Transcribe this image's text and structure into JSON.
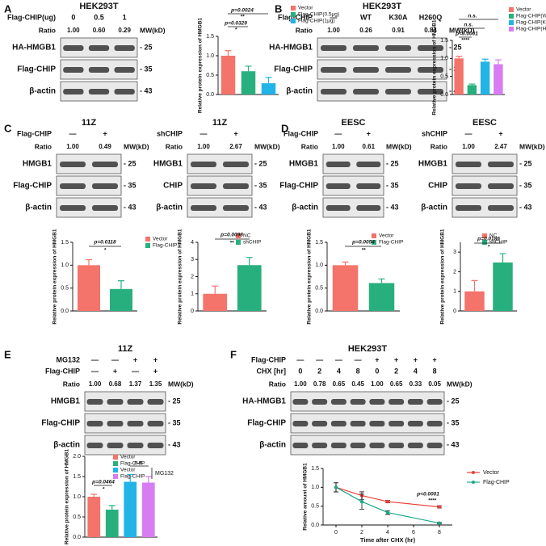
{
  "panel_labels": [
    "A",
    "B",
    "C",
    "D",
    "E",
    "F"
  ],
  "blots": [
    {
      "title": "HEK293T",
      "conditions": [
        {
          "name": "Flag-CHIP(ug)",
          "lanes": [
            "0",
            "0.5",
            "1"
          ]
        }
      ],
      "ratio_label": "Ratio",
      "ratios": [
        "1.00",
        "0.60",
        "0.29"
      ],
      "mw_label": "MW(kD)",
      "bands": [
        {
          "name": "HA-HMGB1",
          "mw": "- 25"
        },
        {
          "name": "Flag-CHIP",
          "mw": "- 35"
        },
        {
          "name": "β-actin",
          "mw": "- 43"
        }
      ]
    },
    {
      "title": "HEK293T",
      "conditions": [
        {
          "name": "Flag-CHIP",
          "lanes": [
            "—",
            "WT",
            "K30A",
            "H260Q"
          ]
        }
      ],
      "ratio_label": "Ratio",
      "ratios": [
        "1.00",
        "0.26",
        "0.91",
        "0.84"
      ],
      "mw_label": "MW(kD)",
      "bands": [
        {
          "name": "HA-HMGB1",
          "mw": "- 25"
        },
        {
          "name": "Flag-CHIP",
          "mw": "- 35"
        },
        {
          "name": "β-actin",
          "mw": "- 43"
        }
      ]
    },
    {
      "title": "11Z",
      "conditions": [
        {
          "name": "Flag-CHIP",
          "lanes": [
            "—",
            "+"
          ]
        }
      ],
      "ratio_label": "Ratio",
      "ratios": [
        "1.00",
        "0.49"
      ],
      "mw_label": "MW(kD)",
      "bands": [
        {
          "name": "HMGB1",
          "mw": "- 25"
        },
        {
          "name": "Flag-CHIP",
          "mw": "- 35"
        },
        {
          "name": "β-actin",
          "mw": "- 43"
        }
      ]
    },
    {
      "title": "11Z",
      "conditions": [
        {
          "name": "shCHIP",
          "lanes": [
            "—",
            "+"
          ]
        }
      ],
      "ratio_label": "Ratio",
      "ratios": [
        "1.00",
        "2.67"
      ],
      "mw_label": "MW(kD)",
      "bands": [
        {
          "name": "HMGB1",
          "mw": "- 25"
        },
        {
          "name": "CHIP",
          "mw": "- 35"
        },
        {
          "name": "β-actin",
          "mw": "- 43"
        }
      ]
    },
    {
      "title": "EESC",
      "conditions": [
        {
          "name": "Flag-CHIP",
          "lanes": [
            "—",
            "+"
          ]
        }
      ],
      "ratio_label": "Ratio",
      "ratios": [
        "1.00",
        "0.61"
      ],
      "mw_label": "MW(kD)",
      "bands": [
        {
          "name": "HMGB1",
          "mw": "- 25"
        },
        {
          "name": "Flag-CHIP",
          "mw": "- 35"
        },
        {
          "name": "β-actin",
          "mw": "- 43"
        }
      ]
    },
    {
      "title": "EESC",
      "conditions": [
        {
          "name": "shCHIP",
          "lanes": [
            "—",
            "+"
          ]
        }
      ],
      "ratio_label": "Ratio",
      "ratios": [
        "1.00",
        "2.47"
      ],
      "mw_label": "MW(kD)",
      "bands": [
        {
          "name": "HMGB1",
          "mw": "- 25"
        },
        {
          "name": "CHIP",
          "mw": "- 35"
        },
        {
          "name": "β-actin",
          "mw": "- 43"
        }
      ]
    },
    {
      "title": "11Z",
      "conditions": [
        {
          "name": "MG132",
          "lanes": [
            "—",
            "—",
            "+",
            "+"
          ]
        },
        {
          "name": "Flag-CHIP",
          "lanes": [
            "—",
            "+",
            "—",
            "+"
          ]
        }
      ],
      "ratio_label": "Ratio",
      "ratios": [
        "1.00",
        "0.68",
        "1.37",
        "1.35"
      ],
      "mw_label": "MW(kD)",
      "bands": [
        {
          "name": "HMGB1",
          "mw": "- 25"
        },
        {
          "name": "Flag-CHIP",
          "mw": "- 35"
        },
        {
          "name": "β-actin",
          "mw": "- 43"
        }
      ]
    },
    {
      "title": "HEK293T",
      "conditions": [
        {
          "name": "Flag-CHIP",
          "lanes": [
            "—",
            "—",
            "—",
            "—",
            "+",
            "+",
            "+",
            "+"
          ]
        },
        {
          "name": "CHX [hr]",
          "lanes": [
            "0",
            "2",
            "4",
            "8",
            "0",
            "2",
            "4",
            "8"
          ]
        }
      ],
      "ratio_label": "Ratio",
      "ratios": [
        "1.00",
        "0.78",
        "0.65",
        "0.45",
        "1.00",
        "0.65",
        "0.33",
        "0.05"
      ],
      "mw_label": "MW(kD)",
      "bands": [
        {
          "name": "HA-HMGB1",
          "mw": "- 25"
        },
        {
          "name": "Flag-CHIP",
          "mw": "- 35"
        },
        {
          "name": "β-actin",
          "mw": "- 43"
        }
      ]
    }
  ],
  "chart_data": [
    {
      "type": "bar",
      "y_label": "Relative protein expression of HMGB1",
      "ylim": [
        0,
        1.5
      ],
      "yticks": [
        {
          "value": 0,
          "label": "0.0"
        },
        {
          "value": 0.5,
          "label": "0.5"
        },
        {
          "value": 1,
          "label": "1.0"
        },
        {
          "value": 1.5,
          "label": "1.5"
        }
      ],
      "series": [
        {
          "name": "Vector",
          "color": "#f4736b",
          "values": [
            1.0
          ],
          "errors": [
            0.13
          ]
        },
        {
          "name": "Flag-CHIP(0.5μg)",
          "color": "#27b07e",
          "values": [
            0.6
          ],
          "errors": [
            0.13
          ]
        },
        {
          "name": "Flag-CHIP(1μg)",
          "color": "#22b4e6",
          "values": [
            0.29
          ],
          "errors": [
            0.15
          ]
        }
      ],
      "annotations": [
        "p=0.0024",
        "**",
        "p=0.0329",
        "*"
      ]
    },
    {
      "type": "bar",
      "y_label": "Relative protein expression of HMGB1",
      "ylim": [
        0,
        1.5
      ],
      "yticks": [
        {
          "value": 0,
          "label": "0.0"
        },
        {
          "value": 0.5,
          "label": "0.5"
        },
        {
          "value": 1,
          "label": "1.0"
        },
        {
          "value": 1.5,
          "label": "1.5"
        }
      ],
      "series": [
        {
          "name": "Vector",
          "color": "#f4736b",
          "values": [
            1.0
          ],
          "errors": [
            0.06
          ]
        },
        {
          "name": "Flag-CHIP(WT)",
          "color": "#27b07e",
          "values": [
            0.26
          ],
          "errors": [
            0.03
          ]
        },
        {
          "name": "Flag-CHIP(K30A)",
          "color": "#22b4e6",
          "values": [
            0.91
          ],
          "errors": [
            0.07
          ]
        },
        {
          "name": "Flag-CHIP(H260Q)",
          "color": "#d77cf2",
          "values": [
            0.84
          ],
          "errors": [
            0.12
          ]
        }
      ],
      "annotations": [
        "n.s.",
        "n.s.",
        "p<0.0001",
        "****"
      ]
    },
    {
      "type": "bar",
      "y_label": "Relative protein expression of HMGB1",
      "ylim": [
        0,
        1.5
      ],
      "yticks": [
        {
          "value": 0,
          "label": "0.0"
        },
        {
          "value": 0.5,
          "label": "0.5"
        },
        {
          "value": 1,
          "label": "1.0"
        },
        {
          "value": 1.5,
          "label": "1.5"
        }
      ],
      "series": [
        {
          "name": "Vector",
          "color": "#f4736b",
          "values": [
            1.0
          ],
          "errors": [
            0.12
          ]
        },
        {
          "name": "Flag-CHIP",
          "color": "#27b07e",
          "values": [
            0.48
          ],
          "errors": [
            0.18
          ]
        }
      ],
      "annotations": [
        "p=0.0118",
        "*"
      ]
    },
    {
      "type": "bar",
      "y_label": "Relative protein expression of HMGB1",
      "ylim": [
        0,
        4
      ],
      "yticks": [
        0,
        1,
        2,
        3,
        4
      ],
      "series": [
        {
          "name": "NC",
          "color": "#f4736b",
          "values": [
            1.0
          ],
          "errors": [
            0.45
          ]
        },
        {
          "name": "shCHIP",
          "color": "#27b07e",
          "values": [
            2.67
          ],
          "errors": [
            0.45
          ]
        }
      ],
      "annotations": [
        "p=0.0098",
        "**"
      ]
    },
    {
      "type": "bar",
      "y_label": "Relative protein expression of HMGB1",
      "ylim": [
        0,
        1.5
      ],
      "yticks": [
        {
          "value": 0,
          "label": "0.0"
        },
        {
          "value": 0.5,
          "label": "0.5"
        },
        {
          "value": 1,
          "label": "1.0"
        },
        {
          "value": 1.5,
          "label": "1.5"
        }
      ],
      "series": [
        {
          "name": "Vector",
          "color": "#f4736b",
          "values": [
            1.0
          ],
          "errors": [
            0.07
          ]
        },
        {
          "name": "Flag-CHIP",
          "color": "#27b07e",
          "values": [
            0.61
          ],
          "errors": [
            0.09
          ]
        }
      ],
      "annotations": [
        "p=0.0054",
        "**"
      ]
    },
    {
      "type": "bar",
      "y_label": "Relative protein expression of HMGB1",
      "ylim": [
        0,
        3.5
      ],
      "yticks": [
        0,
        1,
        2,
        3
      ],
      "series": [
        {
          "name": "NC",
          "color": "#f4736b",
          "values": [
            1.0
          ],
          "errors": [
            0.55
          ]
        },
        {
          "name": "shCHIP",
          "color": "#27b07e",
          "values": [
            2.47
          ],
          "errors": [
            0.45
          ]
        }
      ],
      "annotations": [
        "p=0.0186",
        "*"
      ]
    },
    {
      "type": "bar",
      "y_label": "Relative protein expression of HMGB1",
      "ylim": [
        0,
        2
      ],
      "yticks": [
        {
          "value": 0,
          "label": "0.0"
        },
        {
          "value": 0.5,
          "label": "0.5"
        },
        {
          "value": 1,
          "label": "1.0"
        },
        {
          "value": 1.5,
          "label": "1.5"
        },
        {
          "value": 2,
          "label": "2.0"
        }
      ],
      "series": [
        {
          "name": "Vector",
          "color": "#f4736b",
          "values": [
            1.0
          ],
          "errors": [
            0.06
          ]
        },
        {
          "name": "Flag-CHIP",
          "color": "#27b07e",
          "values": [
            0.68
          ],
          "errors": [
            0.1
          ]
        },
        {
          "name": "Vector",
          "color": "#22b4e6",
          "values": [
            1.37
          ],
          "errors": [
            0.18
          ]
        },
        {
          "name": "Flag-CHIP",
          "color": "#d77cf2",
          "values": [
            1.35
          ],
          "errors": [
            0.15
          ]
        }
      ],
      "legend_group_label": "MG132",
      "annotations": [
        "p=0.0464",
        "*",
        "n.s."
      ]
    },
    {
      "type": "line",
      "x_label": "Time after CHX (hr)",
      "y_label": "Relative amount of HMGB1",
      "x": [
        0,
        2,
        4,
        8
      ],
      "xlim": [
        -1,
        9
      ],
      "xticks": [
        0,
        2,
        4,
        6,
        8
      ],
      "ylim": [
        0,
        1.5
      ],
      "yticks": [
        {
          "value": 0,
          "label": "0.0"
        },
        {
          "value": 0.5,
          "label": "0.5"
        },
        {
          "value": 1,
          "label": "1.0"
        },
        {
          "value": 1.5,
          "label": "1.5"
        }
      ],
      "series": [
        {
          "name": "Vector",
          "color": "#e8413a",
          "values": [
            1.0,
            0.78,
            0.62,
            0.48
          ],
          "errors": [
            0.12,
            0.1,
            0.03,
            0.03
          ]
        },
        {
          "name": "Flag-CHIP",
          "color": "#1aa989",
          "values": [
            1.0,
            0.62,
            0.33,
            0.05
          ],
          "errors": [
            0.12,
            0.2,
            0.05,
            0.02
          ]
        }
      ],
      "annotations": [
        "p<0.0001",
        "****"
      ]
    }
  ]
}
